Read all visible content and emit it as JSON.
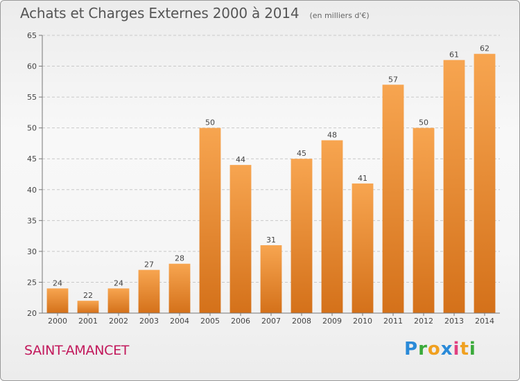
{
  "chart_data": {
    "type": "bar",
    "title": "Achats et Charges Externes 2000 à 2014",
    "subtitle": "(en milliers d'€)",
    "categories": [
      "2000",
      "2001",
      "2002",
      "2003",
      "2004",
      "2005",
      "2006",
      "2007",
      "2008",
      "2009",
      "2010",
      "2011",
      "2012",
      "2013",
      "2014"
    ],
    "values": [
      24,
      22,
      24,
      27,
      28,
      50,
      44,
      31,
      45,
      48,
      41,
      57,
      50,
      61,
      62
    ],
    "ylim": [
      20,
      65
    ],
    "yticks": [
      20,
      25,
      30,
      35,
      40,
      45,
      50,
      55,
      60,
      65
    ],
    "grid": true,
    "bar_color_top": "#f7a550",
    "bar_color_bottom": "#d4711a"
  },
  "footer": {
    "commune": "SAINT-AMANCET",
    "logo_text": "Proxiti"
  }
}
